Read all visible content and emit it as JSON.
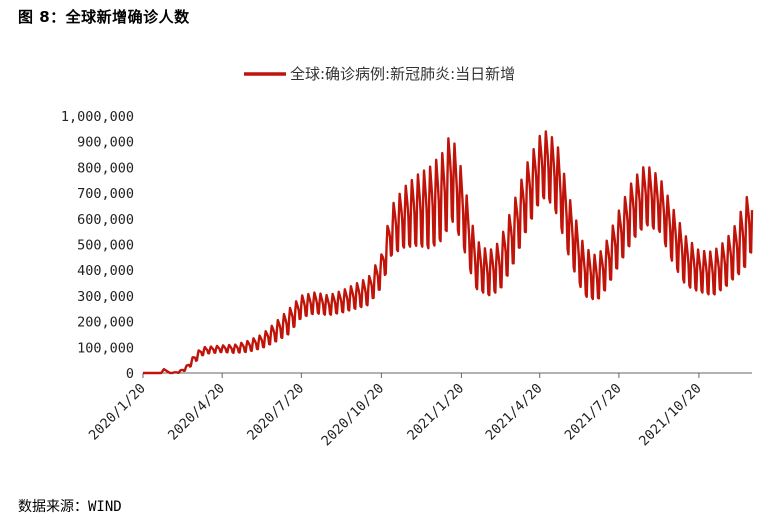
{
  "figure_title": "图 8：全球新增确诊人数",
  "source": "数据来源：WIND",
  "chart_data": {
    "type": "line",
    "title": "",
    "xlabel": "",
    "ylabel": "",
    "legend_position": "top-center",
    "ylim": [
      0,
      1000000
    ],
    "yticks": [
      0,
      100000,
      200000,
      300000,
      400000,
      500000,
      600000,
      700000,
      800000,
      900000,
      1000000
    ],
    "ytick_labels": [
      "0",
      "100,000",
      "200,000",
      "300,000",
      "400,000",
      "500,000",
      "600,000",
      "700,000",
      "800,000",
      "900,000",
      "1,000,000"
    ],
    "xlim": [
      "2020-01-20",
      "2021-12-20"
    ],
    "xtick_labels": [
      "2020/1/20",
      "2020/4/20",
      "2020/7/20",
      "2020/10/20",
      "2021/1/20",
      "2021/4/20",
      "2021/7/20",
      "2021/10/20"
    ],
    "xtick_dates": [
      "2020-01-20",
      "2020-04-20",
      "2020-07-20",
      "2020-10-20",
      "2021-01-20",
      "2021-04-20",
      "2021-07-20",
      "2021-10-20"
    ],
    "series": [
      {
        "name": "全球:确诊病例:新冠肺炎:当日新增",
        "color": "#c0140a",
        "x": [
          "2020-01-20",
          "2020-02-10",
          "2020-02-13",
          "2020-02-20",
          "2020-03-01",
          "2020-03-10",
          "2020-03-20",
          "2020-03-28",
          "2020-04-05",
          "2020-04-20",
          "2020-05-05",
          "2020-05-20",
          "2020-06-05",
          "2020-06-20",
          "2020-07-05",
          "2020-07-20",
          "2020-08-05",
          "2020-08-20",
          "2020-09-05",
          "2020-09-20",
          "2020-10-05",
          "2020-10-20",
          "2020-11-01",
          "2020-11-15",
          "2020-12-01",
          "2020-12-15",
          "2020-12-31",
          "2021-01-08",
          "2021-01-20",
          "2021-02-05",
          "2021-02-20",
          "2021-03-05",
          "2021-03-20",
          "2021-04-05",
          "2021-04-20",
          "2021-04-28",
          "2021-05-10",
          "2021-05-25",
          "2021-06-10",
          "2021-06-25",
          "2021-07-05",
          "2021-07-20",
          "2021-08-05",
          "2021-08-20",
          "2021-09-05",
          "2021-09-20",
          "2021-10-05",
          "2021-10-20",
          "2021-11-05",
          "2021-11-20",
          "2021-12-01",
          "2021-12-10",
          "2021-12-20"
        ],
        "y": [
          0,
          0,
          15000,
          0,
          3000,
          20000,
          60000,
          85000,
          90000,
          95000,
          95000,
          105000,
          125000,
          160000,
          200000,
          260000,
          275000,
          265000,
          280000,
          300000,
          320000,
          400000,
          560000,
          610000,
          640000,
          650000,
          700000,
          780000,
          660000,
          430000,
          390000,
          420000,
          540000,
          690000,
          800000,
          820000,
          760000,
          560000,
          400000,
          370000,
          420000,
          530000,
          640000,
          700000,
          660000,
          540000,
          440000,
          400000,
          390000,
          430000,
          480000,
          530000,
          610000
        ],
        "amplitude": [
          0,
          0,
          0,
          0,
          2000,
          8000,
          15000,
          15000,
          12000,
          12000,
          15000,
          20000,
          25000,
          35000,
          45000,
          40000,
          38000,
          36000,
          40000,
          45000,
          50000,
          60000,
          90000,
          110000,
          130000,
          150000,
          160000,
          160000,
          130000,
          90000,
          80000,
          90000,
          110000,
          120000,
          120000,
          120000,
          130000,
          110000,
          90000,
          80000,
          85000,
          100000,
          110000,
          110000,
          100000,
          100000,
          90000,
          75000,
          80000,
          85000,
          95000,
          120000,
          120000
        ]
      }
    ]
  }
}
